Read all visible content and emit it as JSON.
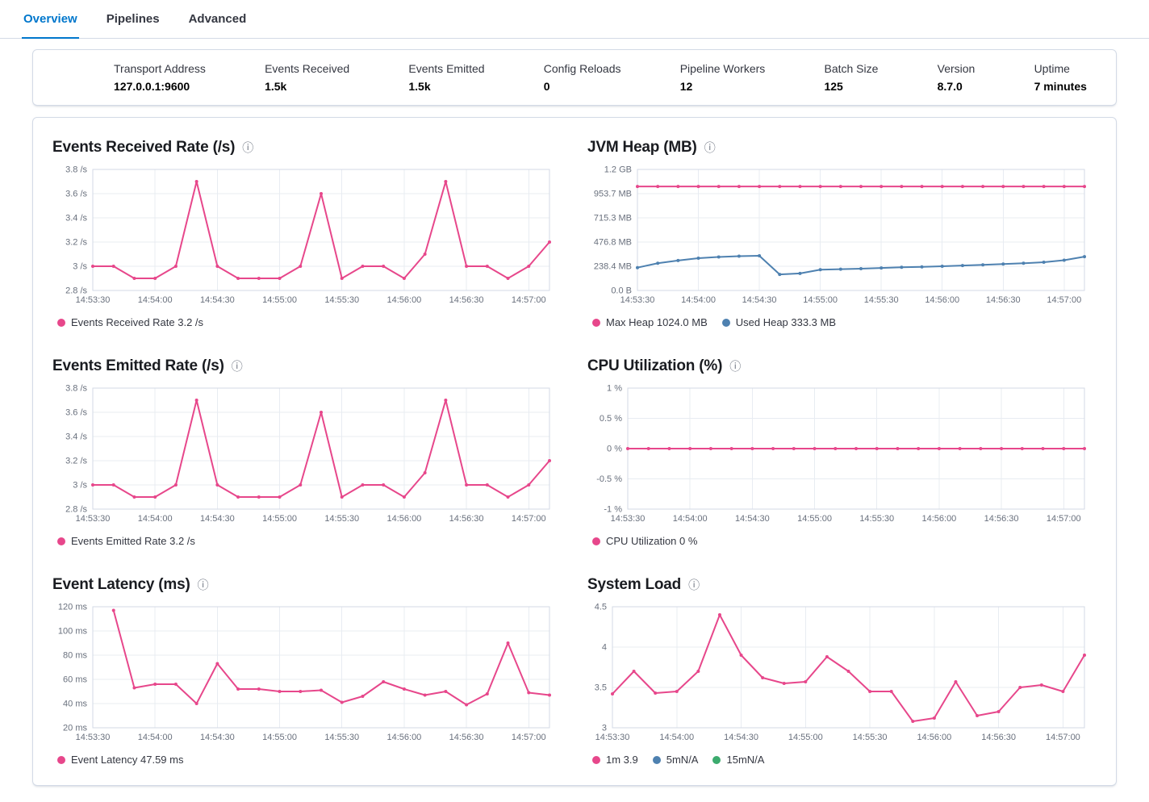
{
  "tabs": {
    "items": [
      {
        "label": "Overview",
        "active": true
      },
      {
        "label": "Pipelines",
        "active": false
      },
      {
        "label": "Advanced",
        "active": false
      }
    ]
  },
  "stats": {
    "items": [
      {
        "label": "Transport Address",
        "value": "127.0.0.1:9600"
      },
      {
        "label": "Events Received",
        "value": "1.5k"
      },
      {
        "label": "Events Emitted",
        "value": "1.5k"
      },
      {
        "label": "Config Reloads",
        "value": "0"
      },
      {
        "label": "Pipeline Workers",
        "value": "12"
      },
      {
        "label": "Batch Size",
        "value": "125"
      },
      {
        "label": "Version",
        "value": "8.7.0"
      },
      {
        "label": "Uptime",
        "value": "7 minutes"
      }
    ]
  },
  "colors": {
    "accent": "#0077CC",
    "pink": "#E7478B",
    "blue": "#4E81B0",
    "green": "#3CAB6E",
    "border": "#D3DAE6",
    "grid": "#E8ECF2",
    "axis_text": "#69707D",
    "title_text": "#1A1C21"
  },
  "info_icon_glyph": "ⓘ",
  "chart_data": [
    {
      "id": "events-received-rate",
      "type": "line",
      "title": "Events Received Rate (/s)",
      "x_ticks": [
        "14:53:30",
        "14:54:00",
        "14:54:30",
        "14:55:00",
        "14:55:30",
        "14:56:00",
        "14:56:30",
        "14:57:00"
      ],
      "x_tick_step": 3,
      "ylim": [
        2.8,
        3.8
      ],
      "y_ticks": [
        {
          "v": 2.8,
          "label": "2.8 /s"
        },
        {
          "v": 3.0,
          "label": "3 /s"
        },
        {
          "v": 3.2,
          "label": "3.2 /s"
        },
        {
          "v": 3.4,
          "label": "3.4 /s"
        },
        {
          "v": 3.6,
          "label": "3.6 /s"
        },
        {
          "v": 3.8,
          "label": "3.8 /s"
        }
      ],
      "series": [
        {
          "name": "Events Received Rate",
          "color_key": "pink",
          "values": [
            3,
            3,
            2.9,
            2.9,
            3,
            3.7,
            3,
            2.9,
            2.9,
            2.9,
            3,
            3.6,
            2.9,
            3,
            3,
            2.9,
            3.1,
            3.7,
            3,
            3,
            2.9,
            3,
            3.2
          ]
        }
      ],
      "legend": [
        {
          "label": "Events Received Rate 3.2 /s",
          "color_key": "pink"
        }
      ]
    },
    {
      "id": "jvm-heap",
      "type": "line",
      "title": "JVM Heap (MB)",
      "x_ticks": [
        "14:53:30",
        "14:54:00",
        "14:54:30",
        "14:55:00",
        "14:55:30",
        "14:56:00",
        "14:56:30",
        "14:57:00"
      ],
      "x_tick_step": 3,
      "ylim": [
        0,
        1192.1
      ],
      "y_ticks": [
        {
          "v": 0,
          "label": "0.0 B"
        },
        {
          "v": 238.4,
          "label": "238.4 MB"
        },
        {
          "v": 476.8,
          "label": "476.8 MB"
        },
        {
          "v": 715.3,
          "label": "715.3 MB"
        },
        {
          "v": 953.7,
          "label": "953.7 MB"
        },
        {
          "v": 1192.1,
          "label": "1.2 GB"
        }
      ],
      "series": [
        {
          "name": "Max Heap",
          "color_key": "pink",
          "values": [
            1024,
            1024,
            1024,
            1024,
            1024,
            1024,
            1024,
            1024,
            1024,
            1024,
            1024,
            1024,
            1024,
            1024,
            1024,
            1024,
            1024,
            1024,
            1024,
            1024,
            1024,
            1024,
            1024
          ]
        },
        {
          "name": "Used Heap",
          "color_key": "blue",
          "values": [
            225,
            268,
            295,
            318,
            330,
            338,
            342,
            158,
            168,
            205,
            210,
            215,
            222,
            228,
            232,
            238,
            245,
            252,
            260,
            268,
            278,
            298,
            333
          ]
        }
      ],
      "legend": [
        {
          "label": "Max Heap 1024.0 MB",
          "color_key": "pink"
        },
        {
          "label": "Used Heap 333.3 MB",
          "color_key": "blue"
        }
      ]
    },
    {
      "id": "events-emitted-rate",
      "type": "line",
      "title": "Events Emitted Rate (/s)",
      "x_ticks": [
        "14:53:30",
        "14:54:00",
        "14:54:30",
        "14:55:00",
        "14:55:30",
        "14:56:00",
        "14:56:30",
        "14:57:00"
      ],
      "x_tick_step": 3,
      "ylim": [
        2.8,
        3.8
      ],
      "y_ticks": [
        {
          "v": 2.8,
          "label": "2.8 /s"
        },
        {
          "v": 3.0,
          "label": "3 /s"
        },
        {
          "v": 3.2,
          "label": "3.2 /s"
        },
        {
          "v": 3.4,
          "label": "3.4 /s"
        },
        {
          "v": 3.6,
          "label": "3.6 /s"
        },
        {
          "v": 3.8,
          "label": "3.8 /s"
        }
      ],
      "series": [
        {
          "name": "Events Emitted Rate",
          "color_key": "pink",
          "values": [
            3,
            3,
            2.9,
            2.9,
            3,
            3.7,
            3,
            2.9,
            2.9,
            2.9,
            3,
            3.6,
            2.9,
            3,
            3,
            2.9,
            3.1,
            3.7,
            3,
            3,
            2.9,
            3,
            3.2
          ]
        }
      ],
      "legend": [
        {
          "label": "Events Emitted Rate 3.2 /s",
          "color_key": "pink"
        }
      ]
    },
    {
      "id": "cpu-utilization",
      "type": "line",
      "title": "CPU Utilization (%)",
      "x_ticks": [
        "14:53:30",
        "14:54:00",
        "14:54:30",
        "14:55:00",
        "14:55:30",
        "14:56:00",
        "14:56:30",
        "14:57:00"
      ],
      "x_tick_step": 3,
      "ylim": [
        -1,
        1
      ],
      "y_ticks": [
        {
          "v": -1,
          "label": "-1 %"
        },
        {
          "v": -0.5,
          "label": "-0.5 %"
        },
        {
          "v": 0,
          "label": "0 %"
        },
        {
          "v": 0.5,
          "label": "0.5 %"
        },
        {
          "v": 1,
          "label": "1 %"
        }
      ],
      "series": [
        {
          "name": "CPU Utilization",
          "color_key": "pink",
          "values": [
            0,
            0,
            0,
            0,
            0,
            0,
            0,
            0,
            0,
            0,
            0,
            0,
            0,
            0,
            0,
            0,
            0,
            0,
            0,
            0,
            0,
            0,
            0
          ]
        }
      ],
      "legend": [
        {
          "label": "CPU Utilization 0 %",
          "color_key": "pink"
        }
      ]
    },
    {
      "id": "event-latency",
      "type": "line",
      "title": "Event Latency (ms)",
      "x_ticks": [
        "14:53:30",
        "14:54:00",
        "14:54:30",
        "14:55:00",
        "14:55:30",
        "14:56:00",
        "14:56:30",
        "14:57:00"
      ],
      "x_tick_step": 3,
      "ylim": [
        20,
        120
      ],
      "y_ticks": [
        {
          "v": 20,
          "label": "20 ms"
        },
        {
          "v": 40,
          "label": "40 ms"
        },
        {
          "v": 60,
          "label": "60 ms"
        },
        {
          "v": 80,
          "label": "80 ms"
        },
        {
          "v": 100,
          "label": "100 ms"
        },
        {
          "v": 120,
          "label": "120 ms"
        }
      ],
      "series": [
        {
          "name": "Event Latency",
          "color_key": "pink",
          "values": [
            null,
            117,
            53,
            56,
            56,
            40,
            73,
            52,
            52,
            50,
            50,
            51,
            41,
            46,
            58,
            52,
            47,
            50,
            39,
            48,
            90,
            49,
            47
          ]
        }
      ],
      "legend": [
        {
          "label": "Event Latency 47.59 ms",
          "color_key": "pink"
        }
      ]
    },
    {
      "id": "system-load",
      "type": "line",
      "title": "System Load",
      "x_ticks": [
        "14:53:30",
        "14:54:00",
        "14:54:30",
        "14:55:00",
        "14:55:30",
        "14:56:00",
        "14:56:30",
        "14:57:00"
      ],
      "x_tick_step": 3,
      "ylim": [
        3,
        4.5
      ],
      "y_ticks": [
        {
          "v": 3,
          "label": "3"
        },
        {
          "v": 3.5,
          "label": "3.5"
        },
        {
          "v": 4,
          "label": "4"
        },
        {
          "v": 4.5,
          "label": "4.5"
        }
      ],
      "series": [
        {
          "name": "1m",
          "color_key": "pink",
          "values": [
            3.42,
            3.7,
            3.43,
            3.45,
            3.7,
            4.4,
            3.9,
            3.62,
            3.55,
            3.57,
            3.88,
            3.7,
            3.45,
            3.45,
            3.08,
            3.12,
            3.57,
            3.15,
            3.2,
            3.5,
            3.53,
            3.45,
            3.9
          ]
        }
      ],
      "legend": [
        {
          "label": "1m 3.9",
          "color_key": "pink"
        },
        {
          "label": "5mN/A",
          "color_key": "blue"
        },
        {
          "label": "15mN/A",
          "color_key": "green"
        }
      ]
    }
  ]
}
